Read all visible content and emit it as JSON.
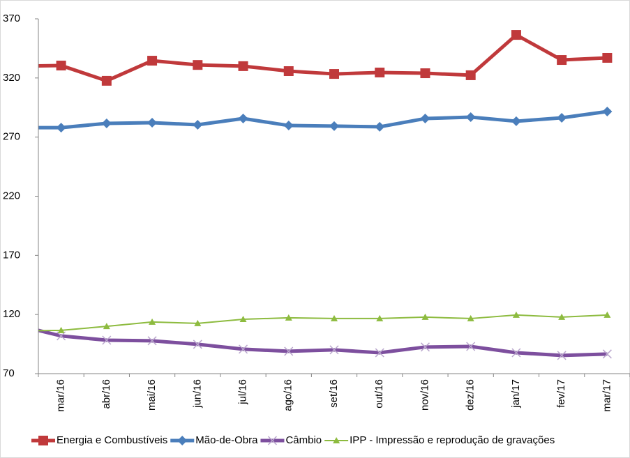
{
  "chart_data": {
    "type": "line",
    "categories": [
      null,
      "mar/16",
      "abr/16",
      "mai/16",
      "jun/16",
      "jul/16",
      "ago/16",
      "set/16",
      "out/16",
      "nov/16",
      "dez/16",
      "jan/17",
      "fev/17",
      "mar/17"
    ],
    "series": [
      {
        "name": "Energia e Combustíveis",
        "color": "#c0393b",
        "marker": "square",
        "values": [
          330,
          330.5,
          317.6,
          334.6,
          331,
          330,
          325.8,
          323.4,
          324.6,
          324,
          322.3,
          356.4,
          335.2,
          337
        ]
      },
      {
        "name": "Mão-de-Obra",
        "color": "#4a7ebb",
        "marker": "diamond",
        "values": [
          278,
          278,
          281.6,
          282.2,
          280.4,
          285.7,
          279.8,
          279.3,
          278.7,
          285.7,
          286.9,
          283.4,
          286.3,
          291.6
        ]
      },
      {
        "name": "Câmbio",
        "color": "#7d4f9e",
        "marker": "x",
        "values": [
          111.3,
          101.9,
          98.3,
          97.8,
          94.8,
          90.7,
          88.9,
          90.1,
          87.7,
          92.5,
          93,
          87.7,
          85.4,
          86.6
        ]
      },
      {
        "name": "IPP - Impressão e reprodução de gravações",
        "color": "#8dbb3f",
        "marker": "triangle",
        "values": [
          106,
          106.6,
          110,
          113.7,
          112.5,
          116,
          117.2,
          116.6,
          116.6,
          117.8,
          116.6,
          119.6,
          117.8,
          119.6
        ]
      }
    ],
    "ylim": [
      70,
      370
    ],
    "yticks": [
      70,
      120,
      170,
      220,
      270,
      320,
      370
    ]
  }
}
